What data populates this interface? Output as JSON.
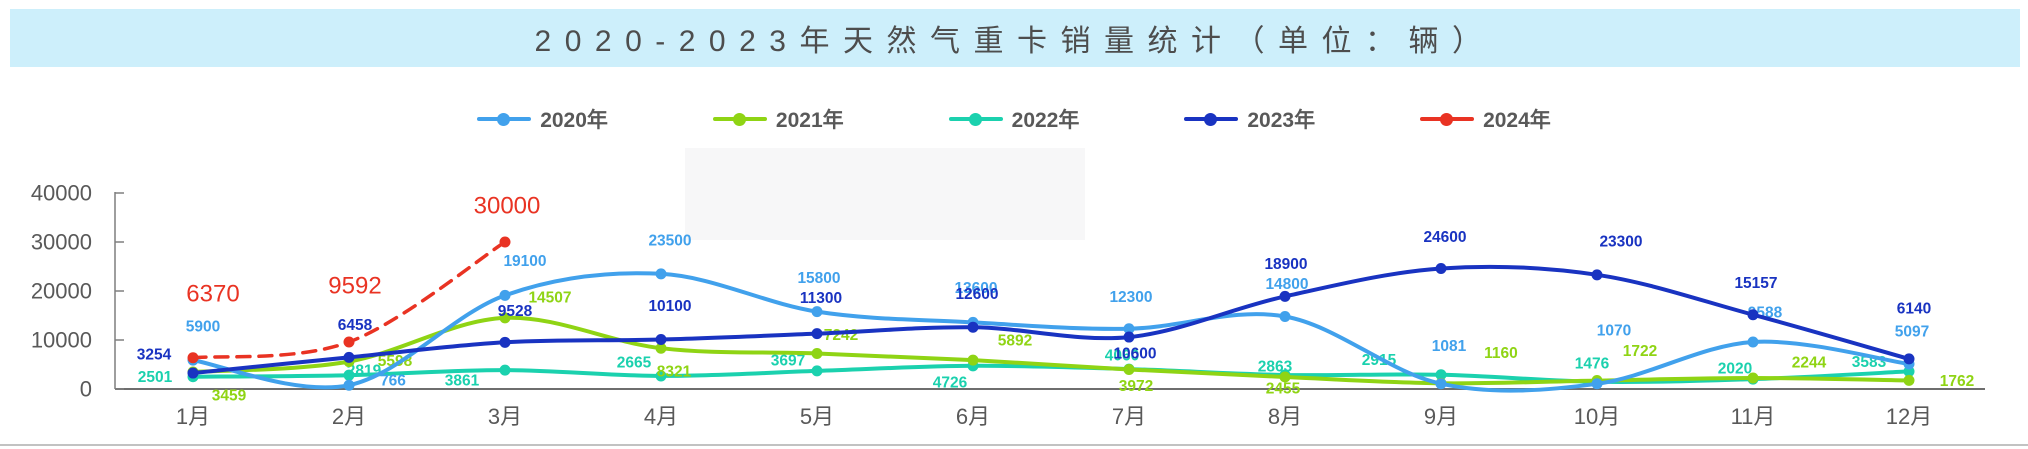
{
  "title": {
    "text": "2020-2023年天然气重卡销量统计（单位：辆）"
  },
  "axis": {
    "y_tick_labels": [
      "0",
      "10000",
      "20000",
      "30000",
      "40000"
    ]
  },
  "chart_data": {
    "type": "line",
    "title": "2020-2023年天然气重卡销量统计（单位：辆）",
    "unit": "辆",
    "categories": [
      "1月",
      "2月",
      "3月",
      "4月",
      "5月",
      "6月",
      "7月",
      "8月",
      "9月",
      "10月",
      "11月",
      "12月"
    ],
    "series": [
      {
        "name": "2020年",
        "color": "#41a1ec",
        "line_style": "solid",
        "values": [
          5900,
          766,
          19100,
          23500,
          15800,
          13600,
          12300,
          14800,
          1081,
          1070,
          9588,
          5097
        ]
      },
      {
        "name": "2021年",
        "color": "#8fd414",
        "line_style": "solid",
        "values": [
          3459,
          5598,
          14507,
          8321,
          7242,
          5892,
          3972,
          2455,
          1160,
          1722,
          2244,
          1762
        ]
      },
      {
        "name": "2022年",
        "color": "#1bd1ae",
        "line_style": "solid",
        "values": [
          2501,
          2819,
          3861,
          2665,
          3697,
          4726,
          4060,
          2863,
          2915,
          1476,
          2020,
          3583
        ]
      },
      {
        "name": "2023年",
        "color": "#1933c1",
        "line_style": "solid",
        "values": [
          3254,
          6458,
          9528,
          10100,
          11300,
          12600,
          10600,
          18900,
          24600,
          23300,
          15157,
          6140
        ]
      },
      {
        "name": "2024年",
        "color": "#e93323",
        "line_style": "dashed",
        "values": [
          6370,
          9592,
          30000
        ]
      }
    ],
    "ylim": [
      0,
      40000
    ],
    "yticks": [
      0,
      10000,
      20000,
      30000,
      40000
    ],
    "grid": false,
    "legend_position": "top",
    "legend_labels": [
      "2020年",
      "2021年",
      "2022年",
      "2023年",
      "2024年"
    ],
    "colors": {
      "title_bar_bg": "#cdeffb",
      "title_text": "#4d4d4d",
      "axis_text": "#595959",
      "axis_line": "#6e6e6e"
    }
  }
}
